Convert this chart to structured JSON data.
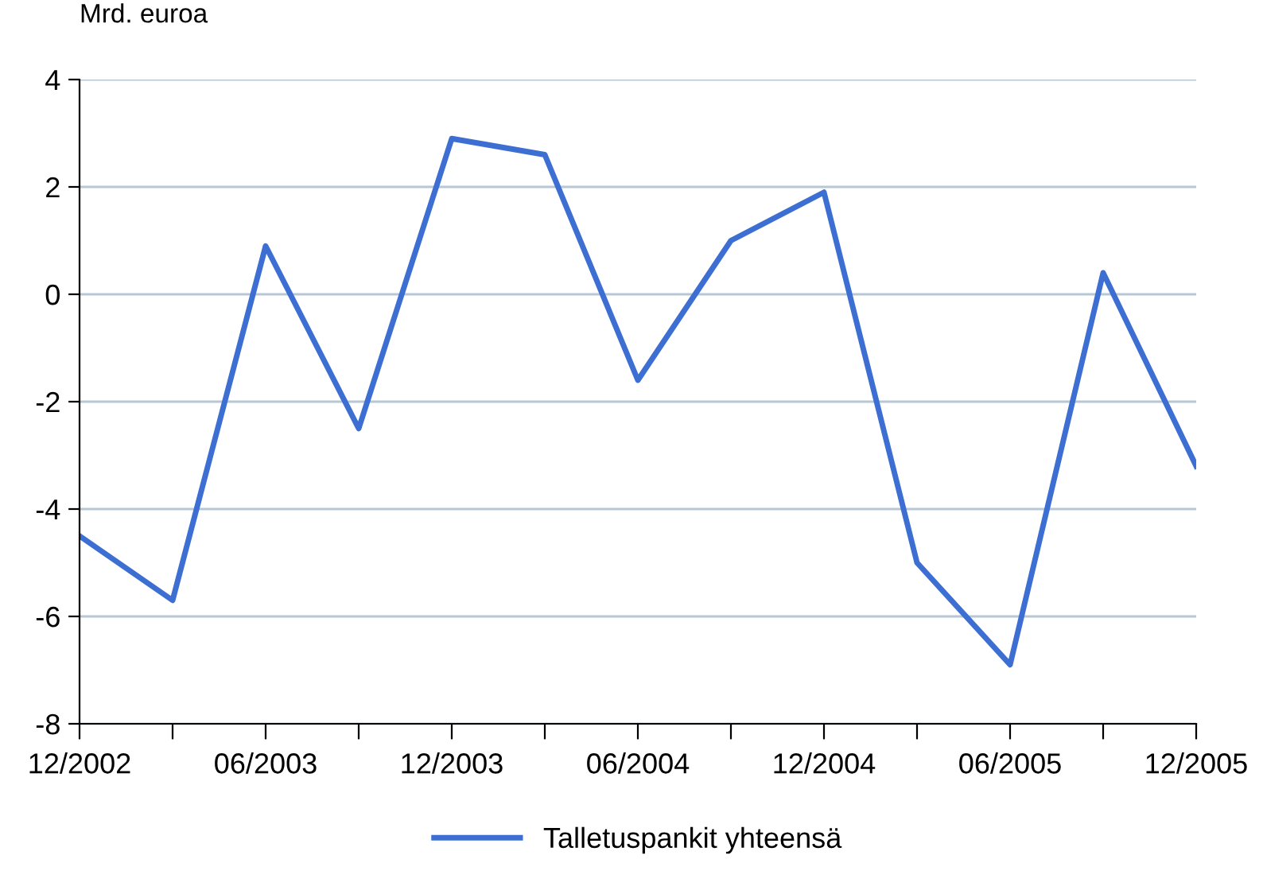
{
  "chart_data": {
    "type": "line",
    "ylabel": "Mrd. euroa",
    "categories": [
      "12/2002",
      null,
      "06/2003",
      null,
      "12/2003",
      null,
      "06/2004",
      null,
      "12/2004",
      null,
      "06/2005",
      null,
      "12/2005"
    ],
    "series": [
      {
        "name": "Talletuspankit yhteensä",
        "color": "#3d6fd3",
        "values": [
          -4.5,
          -5.7,
          0.9,
          -2.5,
          2.9,
          2.6,
          -1.6,
          1.0,
          1.9,
          -5.0,
          -6.9,
          0.4,
          -3.2
        ]
      }
    ],
    "ylim": [
      -8,
      4
    ],
    "yticks": [
      -8,
      -6,
      -4,
      -2,
      0,
      2,
      4
    ],
    "grid": "y",
    "legend": "bottom",
    "marker": "none",
    "line_style": "solid"
  }
}
